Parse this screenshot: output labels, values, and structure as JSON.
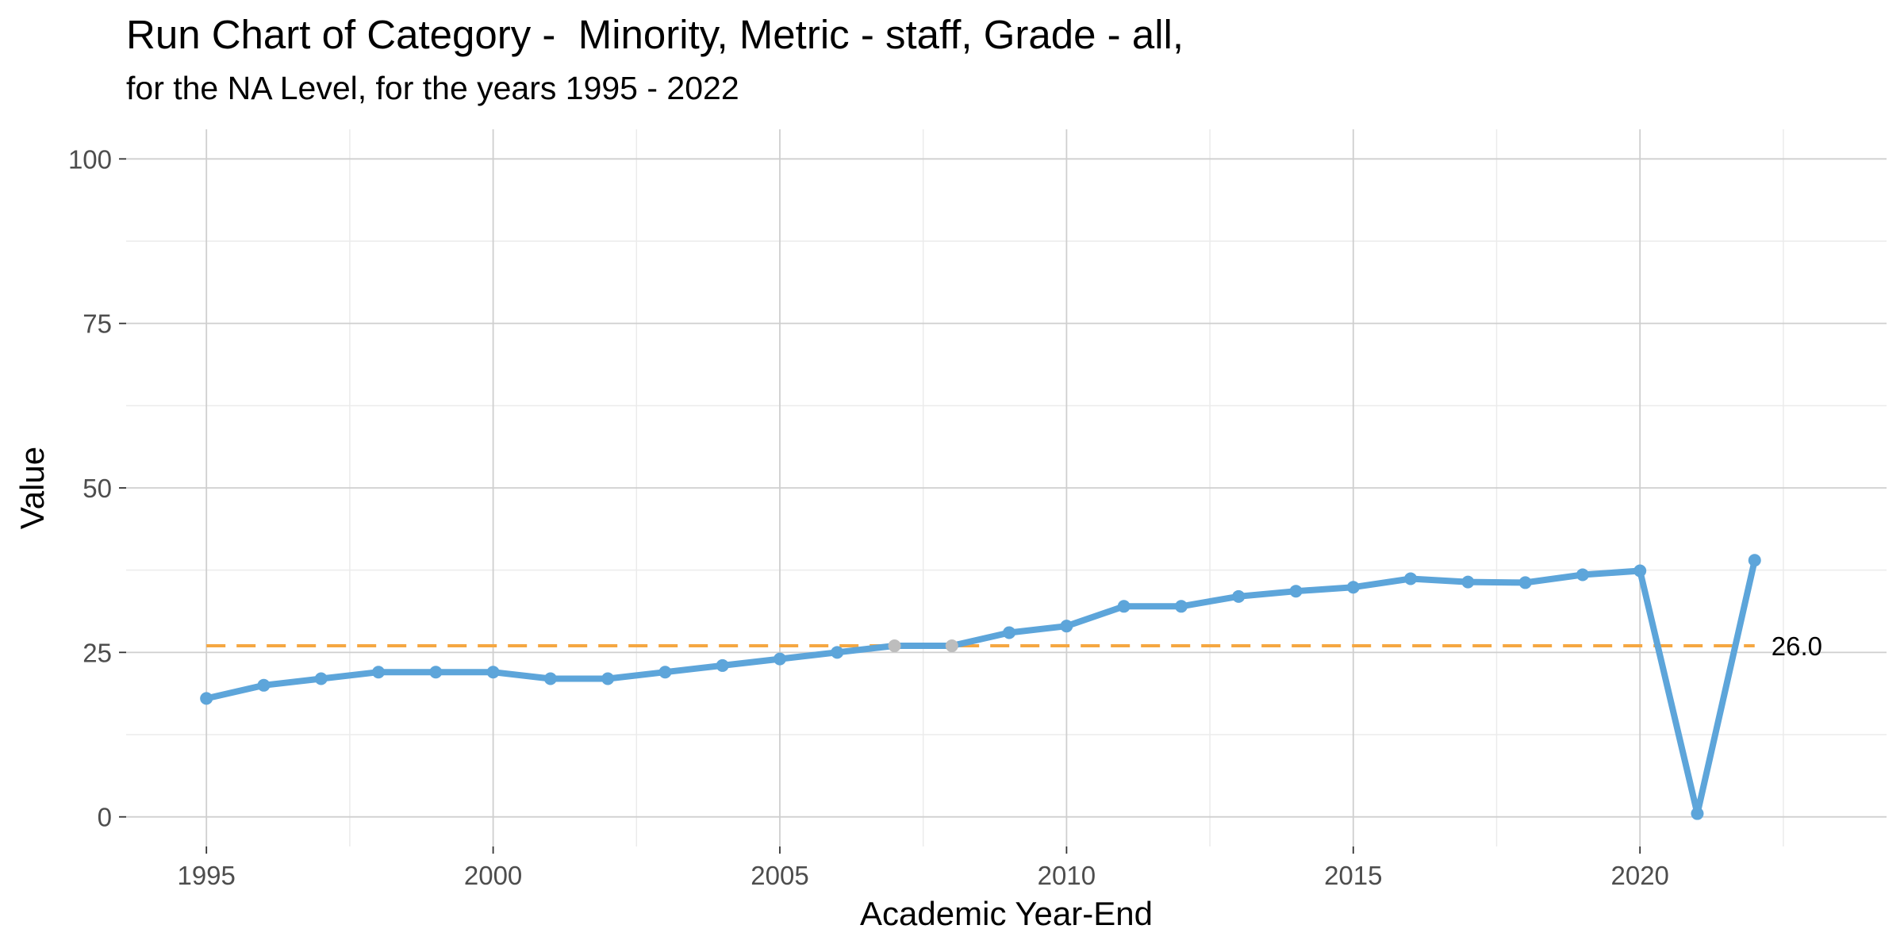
{
  "chart_data": {
    "type": "line",
    "title": "Run Chart of Category -  Minority, Metric - staff, Grade - all,",
    "subtitle": "for the NA Level, for the years 1995 - 2022",
    "xlabel": "Academic Year-End",
    "ylabel": "Value",
    "xlim": [
      1993.6,
      2024.3
    ],
    "ylim": [
      -4.5,
      104.5
    ],
    "x_ticks": [
      1995,
      2000,
      2005,
      2010,
      2015,
      2020
    ],
    "x_tick_labels": [
      "1995",
      "2000",
      "2005",
      "2010",
      "2015",
      "2020"
    ],
    "y_ticks": [
      0,
      25,
      50,
      75,
      100
    ],
    "y_tick_labels": [
      "0",
      "25",
      "50",
      "75",
      "100"
    ],
    "grid": true,
    "series": [
      {
        "color": "#5DA5DA",
        "x": [
          1995,
          1996,
          1997,
          1998,
          1999,
          2000,
          2001,
          2002,
          2003,
          2004,
          2005,
          2006,
          2007,
          2008,
          2009,
          2010,
          2011,
          2012,
          2013,
          2014,
          2015,
          2016,
          2017,
          2018,
          2019,
          2020,
          2021,
          2022
        ],
        "values": [
          18.0,
          20.0,
          21.0,
          22.0,
          22.0,
          22.0,
          21.0,
          21.0,
          22.0,
          23.0,
          24.0,
          25.0,
          26.0,
          26.0,
          28.0,
          29.0,
          32.0,
          32.0,
          33.5,
          34.3,
          34.9,
          36.2,
          35.7,
          35.6,
          36.8,
          37.4,
          0.5,
          39.0
        ],
        "point_colors": [
          "#5DA5DA",
          "#5DA5DA",
          "#5DA5DA",
          "#5DA5DA",
          "#5DA5DA",
          "#5DA5DA",
          "#5DA5DA",
          "#5DA5DA",
          "#5DA5DA",
          "#5DA5DA",
          "#5DA5DA",
          "#5DA5DA",
          "#BDBDBD",
          "#BDBDBD",
          "#5DA5DA",
          "#5DA5DA",
          "#5DA5DA",
          "#5DA5DA",
          "#5DA5DA",
          "#5DA5DA",
          "#5DA5DA",
          "#5DA5DA",
          "#5DA5DA",
          "#5DA5DA",
          "#5DA5DA",
          "#5DA5DA",
          "#5DA5DA",
          "#5DA5DA"
        ]
      }
    ],
    "reference_line": {
      "value": 26.0,
      "label": "26.0",
      "x_range": [
        1995,
        2022
      ],
      "color": "#F5A742",
      "style": "dashed"
    }
  }
}
